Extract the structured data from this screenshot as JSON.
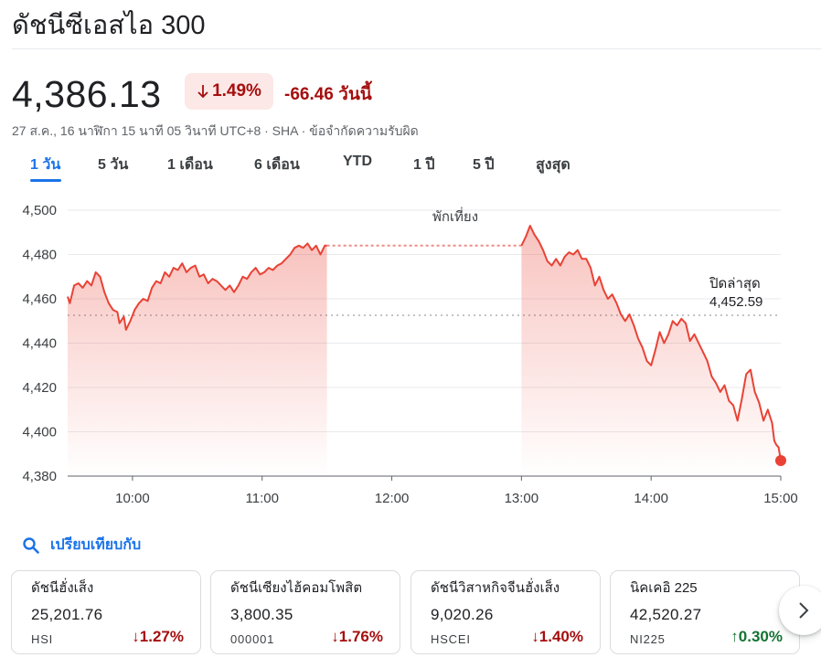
{
  "header": {
    "title": "ดัชนีซีเอสไอ 300",
    "price": "4,386.13",
    "change_percent": "1.49%",
    "change_abs": "-66.46 วันนี้",
    "meta": "27 ส.ค., 16 นาฬิกา 15 นาที 05 วินาที UTC+8 · SHA · ข้อจำกัดความรับผิด"
  },
  "tabs": [
    {
      "label": "1 วัน",
      "active": true
    },
    {
      "label": "5 วัน"
    },
    {
      "label": "1 เดือน"
    },
    {
      "label": "6 เดือน"
    },
    {
      "label": "YTD"
    },
    {
      "label": "1 ปี"
    },
    {
      "label": "5 ปี"
    },
    {
      "label": "สูงสุด"
    }
  ],
  "colors": {
    "line": "#e94235",
    "negative": "#a50e0e",
    "positive": "#137333",
    "accent": "#1a73e8"
  },
  "chart_data": {
    "type": "area",
    "xlabels": [
      "10:00",
      "11:00",
      "12:00",
      "13:00",
      "14:00",
      "15:00"
    ],
    "yticks": [
      "4,500",
      "4,480",
      "4,460",
      "4,440",
      "4,420",
      "4,400",
      "4,380"
    ],
    "ylim": [
      4380,
      4500
    ],
    "xlim": [
      "09:30",
      "15:00"
    ],
    "break_label": "พักเที่ยง",
    "break_range": [
      "11:30",
      "13:00"
    ],
    "prev_close_label": "ปิดล่าสุด",
    "prev_close_value_label": "4,452.59",
    "prev_close": 4452.59,
    "series": [
      {
        "morning": [
          [
            "09:30",
            4461
          ],
          [
            "09:31",
            4458
          ],
          [
            "09:33",
            4466
          ],
          [
            "09:35",
            4467
          ],
          [
            "09:37",
            4465
          ],
          [
            "09:39",
            4468
          ],
          [
            "09:41",
            4466
          ],
          [
            "09:43",
            4472
          ],
          [
            "09:45",
            4470
          ],
          [
            "09:47",
            4463
          ],
          [
            "09:49",
            4458
          ],
          [
            "09:51",
            4455
          ],
          [
            "09:53",
            4454
          ],
          [
            "09:54",
            4449
          ],
          [
            "09:56",
            4452
          ],
          [
            "09:57",
            4446
          ],
          [
            "09:59",
            4450
          ],
          [
            "10:01",
            4455
          ],
          [
            "10:03",
            4458
          ],
          [
            "10:05",
            4460
          ],
          [
            "10:07",
            4459
          ],
          [
            "10:09",
            4465
          ],
          [
            "10:11",
            4468
          ],
          [
            "10:13",
            4467
          ],
          [
            "10:15",
            4472
          ],
          [
            "10:17",
            4470
          ],
          [
            "10:19",
            4474
          ],
          [
            "10:21",
            4473
          ],
          [
            "10:23",
            4476
          ],
          [
            "10:25",
            4472
          ],
          [
            "10:27",
            4474
          ],
          [
            "10:29",
            4475
          ],
          [
            "10:31",
            4470
          ],
          [
            "10:33",
            4471
          ],
          [
            "10:35",
            4467
          ],
          [
            "10:37",
            4469
          ],
          [
            "10:39",
            4468
          ],
          [
            "10:41",
            4466
          ],
          [
            "10:43",
            4464
          ],
          [
            "10:45",
            4466
          ],
          [
            "10:47",
            4463
          ],
          [
            "10:49",
            4466
          ],
          [
            "10:51",
            4470
          ],
          [
            "10:53",
            4469
          ],
          [
            "10:55",
            4472
          ],
          [
            "10:57",
            4474
          ],
          [
            "10:59",
            4471
          ],
          [
            "11:01",
            4472
          ],
          [
            "11:03",
            4474
          ],
          [
            "11:05",
            4473
          ],
          [
            "11:07",
            4475
          ],
          [
            "11:09",
            4476
          ],
          [
            "11:11",
            4478
          ],
          [
            "11:13",
            4480
          ],
          [
            "11:15",
            4483
          ],
          [
            "11:17",
            4484
          ],
          [
            "11:19",
            4483
          ],
          [
            "11:21",
            4485
          ],
          [
            "11:23",
            4482
          ],
          [
            "11:25",
            4484
          ],
          [
            "11:27",
            4480
          ],
          [
            "11:29",
            4484
          ],
          [
            "11:30",
            4484
          ]
        ],
        "afternoon": [
          [
            "13:00",
            4484
          ],
          [
            "13:02",
            4488
          ],
          [
            "13:04",
            4493
          ],
          [
            "13:06",
            4489
          ],
          [
            "13:08",
            4486
          ],
          [
            "13:10",
            4482
          ],
          [
            "13:12",
            4477
          ],
          [
            "13:14",
            4475
          ],
          [
            "13:16",
            4478
          ],
          [
            "13:18",
            4475
          ],
          [
            "13:20",
            4479
          ],
          [
            "13:22",
            4481
          ],
          [
            "13:24",
            4480
          ],
          [
            "13:26",
            4482
          ],
          [
            "13:28",
            4478
          ],
          [
            "13:30",
            4478
          ],
          [
            "13:32",
            4474
          ],
          [
            "13:34",
            4466
          ],
          [
            "13:36",
            4470
          ],
          [
            "13:38",
            4464
          ],
          [
            "13:40",
            4460
          ],
          [
            "13:42",
            4462
          ],
          [
            "13:44",
            4458
          ],
          [
            "13:46",
            4453
          ],
          [
            "13:48",
            4450
          ],
          [
            "13:50",
            4453
          ],
          [
            "13:52",
            4448
          ],
          [
            "13:54",
            4442
          ],
          [
            "13:56",
            4438
          ],
          [
            "13:58",
            4432
          ],
          [
            "14:00",
            4430
          ],
          [
            "14:02",
            4437
          ],
          [
            "14:04",
            4445
          ],
          [
            "14:06",
            4440
          ],
          [
            "14:08",
            4444
          ],
          [
            "14:10",
            4450
          ],
          [
            "14:12",
            4448
          ],
          [
            "14:14",
            4451
          ],
          [
            "14:16",
            4449
          ],
          [
            "14:18",
            4441
          ],
          [
            "14:20",
            4444
          ],
          [
            "14:22",
            4440
          ],
          [
            "14:24",
            4436
          ],
          [
            "14:26",
            4432
          ],
          [
            "14:28",
            4425
          ],
          [
            "14:30",
            4422
          ],
          [
            "14:32",
            4418
          ],
          [
            "14:34",
            4421
          ],
          [
            "14:36",
            4414
          ],
          [
            "14:38",
            4412
          ],
          [
            "14:40",
            4405
          ],
          [
            "14:42",
            4415
          ],
          [
            "14:44",
            4426
          ],
          [
            "14:46",
            4428
          ],
          [
            "14:48",
            4418
          ],
          [
            "14:50",
            4413
          ],
          [
            "14:52",
            4405
          ],
          [
            "14:54",
            4410
          ],
          [
            "14:56",
            4404
          ],
          [
            "14:57",
            4396
          ],
          [
            "14:58",
            4394
          ],
          [
            "14:59",
            4393
          ],
          [
            "15:00",
            4387
          ]
        ]
      }
    ]
  },
  "compare": {
    "label": "เปรียบเทียบกับ"
  },
  "cards": [
    {
      "name": "ดัชนีฮั่งเส็ง",
      "value": "25,201.76",
      "symbol": "HSI",
      "change": "1.27%",
      "direction": "down"
    },
    {
      "name": "ดัชนีเซียงไฮ้คอมโพสิต",
      "value": "3,800.35",
      "symbol": "000001",
      "change": "1.76%",
      "direction": "down"
    },
    {
      "name": "ดัชนีวิสาหกิจจีนฮั่งเส็ง",
      "value": "9,020.26",
      "symbol": "HSCEI",
      "change": "1.40%",
      "direction": "down"
    },
    {
      "name": "นิคเคอิ 225",
      "value": "42,520.27",
      "symbol": "NI225",
      "change": "0.30%",
      "direction": "up"
    }
  ]
}
